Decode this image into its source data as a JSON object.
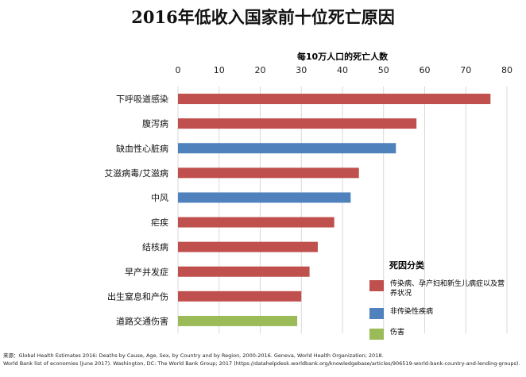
{
  "chart_data": {
    "type": "bar",
    "orientation": "horizontal",
    "title": "2016年低收入国家前十位死亡原因",
    "xlabel": "每10万人口的死亡人数",
    "xlim": [
      0,
      80
    ],
    "xticks": [
      "0",
      "10",
      "20",
      "30",
      "40",
      "50",
      "60",
      "70",
      "80"
    ],
    "grid": true,
    "legend_position": "bottom-right",
    "legend_title": "死因分类",
    "legend": [
      {
        "name": "传染病、孕产妇和新生儿病症以及营养状况",
        "color": "#c0504d"
      },
      {
        "name": "非传染性疾病",
        "color": "#4f81bd"
      },
      {
        "name": "伤害",
        "color": "#9bbb59"
      }
    ],
    "categories": [
      "下呼吸道感染",
      "腹泻病",
      "缺血性心脏病",
      "艾滋病毒/艾滋病",
      "中风",
      "疟疾",
      "结核病",
      "早产并发症",
      "出生窒息和产伤",
      "道路交通伤害"
    ],
    "values": [
      76,
      58,
      53,
      44,
      42,
      38,
      34,
      32,
      30,
      29
    ],
    "group": [
      0,
      0,
      1,
      0,
      1,
      0,
      0,
      0,
      0,
      2
    ]
  },
  "footnote": {
    "line1": "来源：Global Health Estimates 2016: Deaths by Cause, Age, Sex, by Country and by Region, 2000-2016. Geneva, World Health Organization; 2018.",
    "line2": "World Bank list of economies (June 2017). Washington, DC: The World Bank Group; 2017 (https://datahelpdesk.worldbank.org/knowledgebase/articles/906519-world-bank-country-and-lending-groups)."
  }
}
